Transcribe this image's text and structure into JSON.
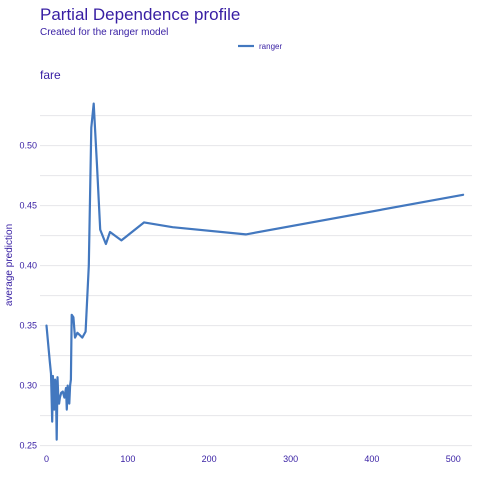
{
  "chart_data": {
    "type": "line",
    "title": "Partial Dependence profile",
    "subtitle": "Created for the ranger model",
    "facet_label": "fare",
    "xlabel": "",
    "ylabel": "average prediction",
    "xlim": [
      -8,
      523
    ],
    "ylim": [
      0.248,
      0.548
    ],
    "x_ticks": [
      0,
      100,
      200,
      300,
      400,
      500
    ],
    "y_ticks": [
      0.25,
      0.3,
      0.35,
      0.4,
      0.45,
      0.5
    ],
    "y_tick_labels": [
      "0.25",
      "0.30",
      "0.35",
      "0.40",
      "0.45",
      "0.50"
    ],
    "grid": true,
    "legend_position": "top",
    "colors": {
      "line": "#4378bf",
      "text": "#371ea3",
      "grid": "#e6e6ea"
    },
    "series": [
      {
        "name": "ranger",
        "x": [
          0,
          4,
          5.5,
          7,
          7.8,
          8.5,
          9.5,
          10.5,
          11.5,
          12.5,
          13.5,
          14.5,
          15.5,
          16.5,
          18,
          20,
          22,
          24,
          25,
          26,
          27,
          28,
          29,
          30,
          31,
          33,
          35,
          38,
          41,
          44,
          48,
          52,
          55,
          58,
          62,
          66,
          73,
          78,
          92,
          120,
          155,
          245,
          512
        ],
        "y": [
          0.35,
          0.32,
          0.31,
          0.27,
          0.308,
          0.29,
          0.28,
          0.305,
          0.3,
          0.255,
          0.307,
          0.29,
          0.285,
          0.29,
          0.294,
          0.295,
          0.29,
          0.298,
          0.28,
          0.3,
          0.288,
          0.285,
          0.3,
          0.305,
          0.359,
          0.357,
          0.34,
          0.344,
          0.342,
          0.34,
          0.345,
          0.4,
          0.515,
          0.535,
          0.485,
          0.43,
          0.418,
          0.428,
          0.421,
          0.436,
          0.432,
          0.426,
          0.459
        ]
      }
    ]
  }
}
